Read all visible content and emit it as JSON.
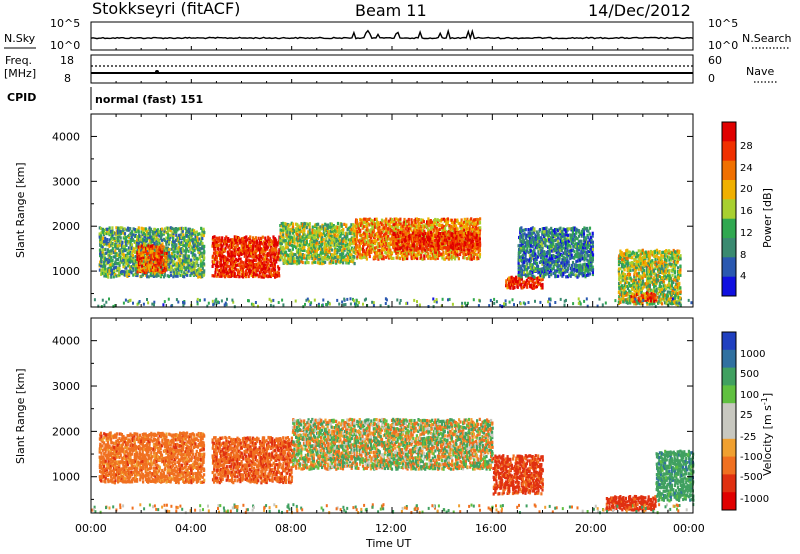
{
  "header": {
    "title": "Stokkseyri (fitACF)",
    "beam": "Beam 11",
    "date": "14/Dec/2012"
  },
  "top_strip": {
    "left_label": "N.Sky",
    "right_label": "N.Search",
    "left_ticks": [
      "10^5",
      "10^0"
    ],
    "right_ticks": [
      "10^5",
      "10^0"
    ]
  },
  "freq_strip": {
    "left_label_1": "Freq.",
    "left_label_2": "[MHz]",
    "right_label": "Nave",
    "left_ticks": [
      "18",
      "8"
    ],
    "right_ticks": [
      "60",
      "0"
    ]
  },
  "cpid": {
    "label": "CPID",
    "value": "normal (fast) 151"
  },
  "colors": {
    "power_scale": [
      "#1010e0",
      "#2a58b0",
      "#3a8a70",
      "#30a850",
      "#a8d030",
      "#f0b000",
      "#f07000",
      "#f03000",
      "#e00000"
    ],
    "velocity_scale": [
      "#2040c0",
      "#3070a0",
      "#40a060",
      "#60c040",
      "#c8c8c0",
      "#c8c8c0",
      "#f0a030",
      "#f07020",
      "#e03010",
      "#e00000"
    ]
  },
  "chart_data": [
    {
      "type": "heatmap",
      "quantity": "power",
      "xlabel": "",
      "ylabel": "Slant Range [km]",
      "xlim": [
        "00:00",
        "24:00"
      ],
      "ylim": [
        200,
        4500
      ],
      "y_ticks": [
        "1000",
        "2000",
        "3000",
        "4000"
      ],
      "colorbar": {
        "label": "Power [dB]",
        "ticks": [
          "4",
          "8",
          "12",
          "16",
          "20",
          "24",
          "28"
        ],
        "range": [
          0,
          32
        ]
      },
      "echo_regions": [
        {
          "t_start": 0.3,
          "t_end": 4.5,
          "range_km": [
            900,
            2000
          ],
          "power_db": 12
        },
        {
          "t_start": 1.8,
          "t_end": 3.0,
          "range_km": [
            1000,
            1600
          ],
          "power_db": 25
        },
        {
          "t_start": 4.8,
          "t_end": 7.5,
          "range_km": [
            900,
            1800
          ],
          "power_db": 28
        },
        {
          "t_start": 7.5,
          "t_end": 10.5,
          "range_km": [
            1200,
            2100
          ],
          "power_db": 15
        },
        {
          "t_start": 10.5,
          "t_end": 15.5,
          "range_km": [
            1300,
            2200
          ],
          "power_db": 22
        },
        {
          "t_start": 12.0,
          "t_end": 15.5,
          "range_km": [
            1500,
            1900
          ],
          "power_db": 28
        },
        {
          "t_start": 16.5,
          "t_end": 18.0,
          "range_km": [
            650,
            900
          ],
          "power_db": 28
        },
        {
          "t_start": 17.0,
          "t_end": 20.0,
          "range_km": [
            900,
            2000
          ],
          "power_db": 8
        },
        {
          "t_start": 21.0,
          "t_end": 23.5,
          "range_km": [
            300,
            1500
          ],
          "power_db": 16
        },
        {
          "t_start": 21.5,
          "t_end": 22.5,
          "range_km": [
            350,
            550
          ],
          "power_db": 26
        }
      ]
    },
    {
      "type": "heatmap",
      "quantity": "velocity",
      "xlabel": "Time UT",
      "ylabel": "Slant Range [km]",
      "xlim": [
        "00:00",
        "24:00"
      ],
      "x_ticks": [
        "00:00",
        "04:00",
        "08:00",
        "12:00",
        "16:00",
        "20:00",
        "00:00"
      ],
      "ylim": [
        200,
        4500
      ],
      "y_ticks": [
        "1000",
        "2000",
        "3000",
        "4000"
      ],
      "colorbar": {
        "label": "Velocity [m s^-1]",
        "ticks": [
          "1000",
          "500",
          "100",
          "25",
          "-25",
          "-100",
          "-500",
          "-1000"
        ]
      },
      "echo_regions": [
        {
          "t_start": 0.3,
          "t_end": 4.5,
          "range_km": [
            900,
            2000
          ],
          "velocity": -300
        },
        {
          "t_start": 4.8,
          "t_end": 8.0,
          "range_km": [
            900,
            1900
          ],
          "velocity": -400
        },
        {
          "t_start": 8.0,
          "t_end": 16.0,
          "range_km": [
            1200,
            2300
          ],
          "velocity": 0
        },
        {
          "t_start": 16.0,
          "t_end": 18.0,
          "range_km": [
            650,
            1500
          ],
          "velocity": -600
        },
        {
          "t_start": 20.5,
          "t_end": 22.5,
          "range_km": [
            300,
            600
          ],
          "velocity": -700
        },
        {
          "t_start": 22.5,
          "t_end": 24.0,
          "range_km": [
            500,
            1600
          ],
          "velocity": 300
        }
      ]
    }
  ]
}
